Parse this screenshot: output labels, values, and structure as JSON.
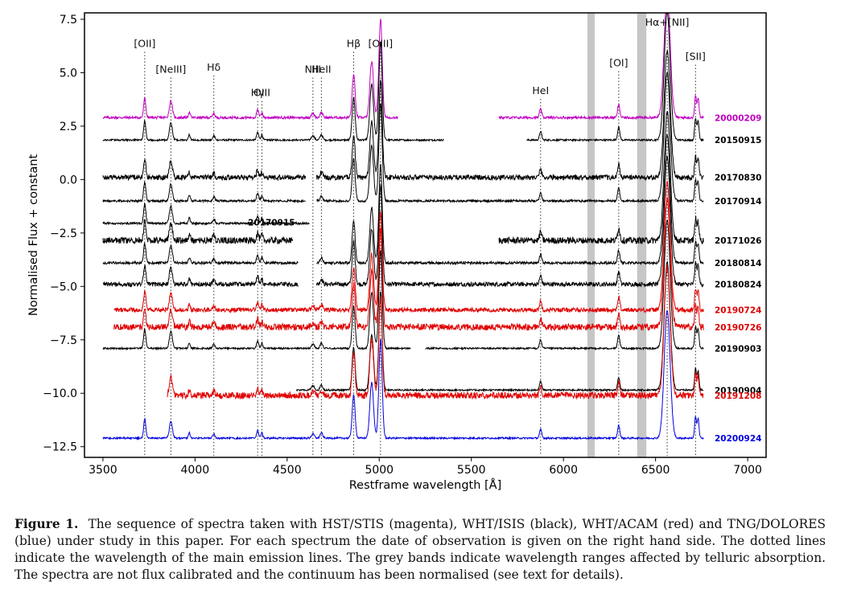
{
  "figure": {
    "caption_label": "Figure 1.",
    "caption_text": "The sequence of spectra taken with HST/STIS (magenta), WHT/ISIS (black), WHT/ACAM (red) and TNG/DOLORES (blue) under study in this paper. For each spectrum the date of observation is given on the right hand side. The dotted lines indicate the wavelength of the main emission lines. The grey bands indicate wavelength ranges affected by telluric absorption. The spectra are not flux calibrated and the continuum has been normalised (see text for details)."
  },
  "chart_data": {
    "type": "line",
    "xlabel": "Restframe wavelength [Å]",
    "ylabel": "Normalised Flux + constant",
    "xlim": [
      3400,
      7100
    ],
    "ylim": [
      -13.0,
      7.8
    ],
    "xticks": [
      3500,
      4000,
      4500,
      5000,
      5500,
      6000,
      6500,
      7000
    ],
    "yticks": [
      7.5,
      5.0,
      2.5,
      0.0,
      -2.5,
      -5.0,
      -7.5,
      -10.0,
      -12.5
    ],
    "ytick_labels": [
      "7.5",
      "5.0",
      "2.5",
      "0.0",
      "−2.5",
      "−5.0",
      "−7.5",
      "−10.0",
      "−12.5"
    ],
    "grid": false,
    "telluric_bands": [
      [
        6130,
        6170
      ],
      [
        6400,
        6450
      ]
    ],
    "emission_lines": [
      {
        "label": "[OII]",
        "wavelength": 3727,
        "label_y": 6.2
      },
      {
        "label": "[NeIII]",
        "wavelength": 3869,
        "label_y": 5.0
      },
      {
        "label": "Hδ",
        "wavelength": 4102,
        "label_y": 5.1
      },
      {
        "label": "Hγ",
        "wavelength": 4340,
        "label_y": 3.9
      },
      {
        "label": "OIII",
        "wavelength": 4363,
        "label_y": 3.9
      },
      {
        "label": "NIII",
        "wavelength": 4640,
        "label_y": 5.0
      },
      {
        "label": "HeII",
        "wavelength": 4686,
        "label_y": 5.0
      },
      {
        "label": "Hβ",
        "wavelength": 4861,
        "label_y": 6.2
      },
      {
        "label": "[OIII]",
        "wavelength": 5007,
        "label_y": 6.2
      },
      {
        "label": "HeI",
        "wavelength": 5876,
        "label_y": 4.0
      },
      {
        "label": "[OI]",
        "wavelength": 6300,
        "label_y": 5.3
      },
      {
        "label": "Hα+[NII]",
        "wavelength": 6563,
        "label_y": 7.2
      },
      {
        "label": "[SII]",
        "wavelength": 6717,
        "label_y": 5.6
      }
    ],
    "series": [
      {
        "name": "20000209",
        "color": "#c000c0",
        "offset": 2.9,
        "segments": [
          [
            3500,
            5100
          ],
          [
            5650,
            6760
          ]
        ],
        "noise": 0.06
      },
      {
        "name": "20150915",
        "color": "#000000",
        "offset": 1.85,
        "segments": [
          [
            3500,
            5350
          ],
          [
            5800,
            6760
          ]
        ],
        "noise": 0.04
      },
      {
        "name": "20170830",
        "color": "#000000",
        "offset": 0.1,
        "segments": [
          [
            3500,
            4600
          ],
          [
            4660,
            6760
          ]
        ],
        "noise": 0.12
      },
      {
        "name": "20170914",
        "color": "#000000",
        "offset": -1.0,
        "segments": [
          [
            3500,
            4600
          ],
          [
            4660,
            6760
          ]
        ],
        "noise": 0.05
      },
      {
        "name": "20170915",
        "color": "#000000",
        "offset": -2.05,
        "segments": [
          [
            3500,
            4620
          ]
        ],
        "noise": 0.05,
        "inline_label": true
      },
      {
        "name": "20171026",
        "color": "#000000",
        "offset": -2.85,
        "segments": [
          [
            3500,
            4530
          ],
          [
            5650,
            6760
          ]
        ],
        "noise": 0.15
      },
      {
        "name": "20180814",
        "color": "#000000",
        "offset": -3.9,
        "segments": [
          [
            3500,
            4560
          ],
          [
            4660,
            6760
          ]
        ],
        "noise": 0.06
      },
      {
        "name": "20180824",
        "color": "#000000",
        "offset": -4.9,
        "segments": [
          [
            3500,
            4560
          ],
          [
            4660,
            6760
          ]
        ],
        "noise": 0.1
      },
      {
        "name": "20190724",
        "color": "#e00000",
        "offset": -6.1,
        "segments": [
          [
            3560,
            6760
          ]
        ],
        "noise": 0.1
      },
      {
        "name": "20190726",
        "color": "#e00000",
        "offset": -6.9,
        "segments": [
          [
            3560,
            6760
          ]
        ],
        "noise": 0.15
      },
      {
        "name": "20190903",
        "color": "#000000",
        "offset": -7.9,
        "segments": [
          [
            3500,
            5170
          ],
          [
            5250,
            6760
          ]
        ],
        "noise": 0.04
      },
      {
        "name": "20190904",
        "color": "#000000",
        "offset": -9.85,
        "segments": [
          [
            4550,
            6760
          ]
        ],
        "noise": 0.04
      },
      {
        "name": "20191208",
        "color": "#e00000",
        "offset": -10.1,
        "segments": [
          [
            3850,
            6760
          ]
        ],
        "noise": 0.15
      },
      {
        "name": "20200924",
        "color": "#0000e0",
        "offset": -12.1,
        "segments": [
          [
            3500,
            6760
          ]
        ],
        "noise": 0.04
      }
    ]
  }
}
